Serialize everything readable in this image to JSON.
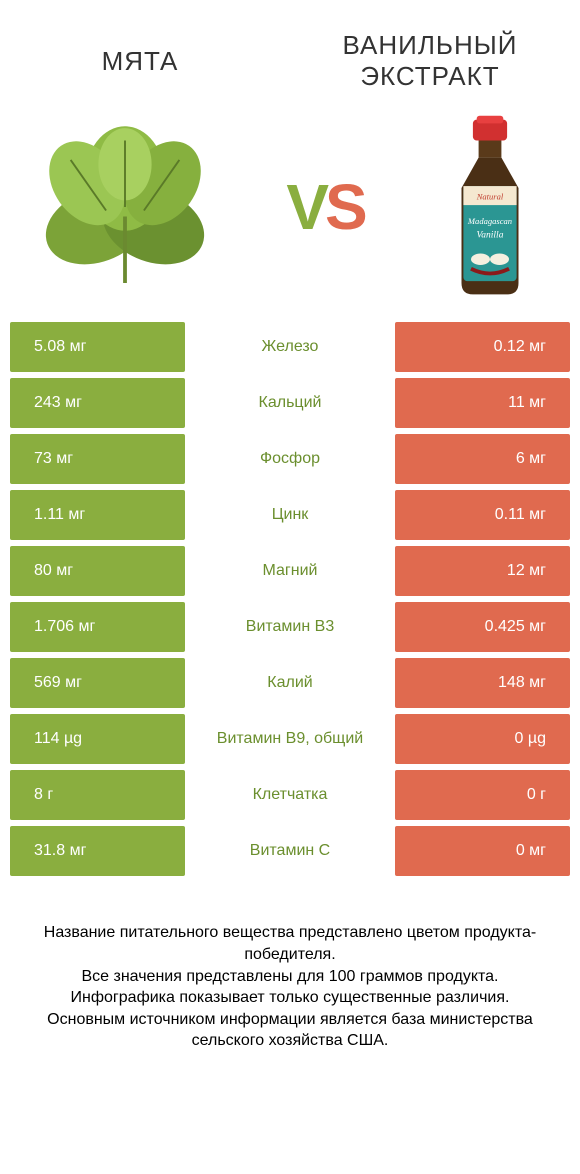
{
  "header": {
    "left_title": "МЯТА",
    "right_title_line1": "ВАНИЛЬНЫЙ",
    "right_title_line2": "ЭКСТРАКТ",
    "vs_v": "V",
    "vs_s": "S"
  },
  "colors": {
    "left_bar": "#8aae3f",
    "right_bar": "#e06a4f",
    "left_text": "#6b8f2e",
    "right_text": "#c94e33",
    "bg": "#ffffff"
  },
  "rows": [
    {
      "left": "5.08 мг",
      "mid": "Железо",
      "right": "0.12 мг",
      "winner": "left"
    },
    {
      "left": "243 мг",
      "mid": "Кальций",
      "right": "11 мг",
      "winner": "left"
    },
    {
      "left": "73 мг",
      "mid": "Фосфор",
      "right": "6 мг",
      "winner": "left"
    },
    {
      "left": "1.11 мг",
      "mid": "Цинк",
      "right": "0.11 мг",
      "winner": "left"
    },
    {
      "left": "80 мг",
      "mid": "Магний",
      "right": "12 мг",
      "winner": "left"
    },
    {
      "left": "1.706 мг",
      "mid": "Витамин B3",
      "right": "0.425 мг",
      "winner": "left"
    },
    {
      "left": "569 мг",
      "mid": "Калий",
      "right": "148 мг",
      "winner": "left"
    },
    {
      "left": "114 µg",
      "mid": "Витамин B9, общий",
      "right": "0 µg",
      "winner": "left"
    },
    {
      "left": "8 г",
      "mid": "Клетчатка",
      "right": "0 г",
      "winner": "left"
    },
    {
      "left": "31.8 мг",
      "mid": "Витамин C",
      "right": "0 мг",
      "winner": "left"
    }
  ],
  "footer": {
    "line1": "Название питательного вещества представлено цветом продукта-победителя.",
    "line2": "Все значения представлены для 100 граммов продукта.",
    "line3": "Инфографика показывает только существенные различия.",
    "line4": "Основным источником информации является база министерства сельского хозяйства США."
  }
}
